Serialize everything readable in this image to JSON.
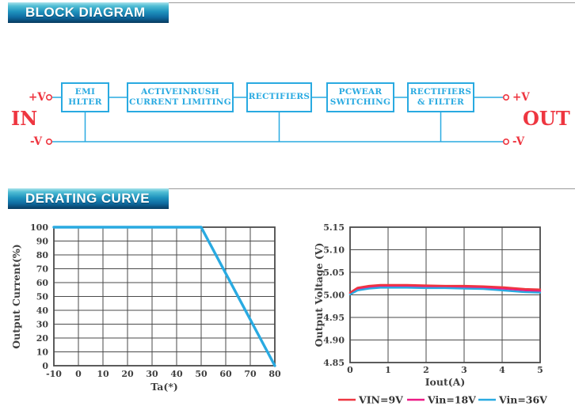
{
  "colors": {
    "accent_cyan": "#29aae1",
    "red": "#ee3640",
    "magenta": "#ec1a86",
    "grid": "#4a4a4a",
    "text_dark": "#3f3f3f",
    "banner_top": "#a7e2ea",
    "banner_bottom": "#083a5f"
  },
  "sections": {
    "block_diagram": {
      "title": "BLOCK DIAGRAM"
    },
    "derating": {
      "title": "DERATING CURVE"
    }
  },
  "diagram": {
    "in_label": "IN",
    "out_label": "OUT",
    "plus_v": "+V",
    "minus_v": "-V",
    "blocks": [
      {
        "label": "EMI\nHLTER"
      },
      {
        "label": "ACTIVEINRUSH\nCURRENT LIMITING"
      },
      {
        "label": "RECTIFIERS"
      },
      {
        "label": "PCWEAR\nSWITCHING"
      },
      {
        "label": "RECTIFIERS\n& FILTER"
      }
    ]
  },
  "chart_data": [
    {
      "type": "line",
      "title": "",
      "xlabel": "Ta(*)",
      "ylabel": "Output Current(%)",
      "xlim": [
        -10,
        80
      ],
      "ylim": [
        0,
        100
      ],
      "xticks": [
        -10,
        0,
        10,
        20,
        30,
        40,
        50,
        60,
        70,
        80
      ],
      "xtick_labels": [
        "-10",
        "0",
        "10",
        "20",
        "30",
        "40",
        "50",
        "60",
        "70",
        "80"
      ],
      "yticks": [
        0,
        10,
        20,
        30,
        40,
        50,
        60,
        70,
        80,
        90,
        100
      ],
      "ytick_labels": [
        "0",
        "10",
        "20",
        "30",
        "40",
        "50",
        "60",
        "70",
        "80",
        "90",
        "100"
      ],
      "grid": true,
      "legend": false,
      "series": [
        {
          "name": "Output Current",
          "color": "#29aae1",
          "line_width": 3.4,
          "x": [
            -10,
            50,
            80
          ],
          "y": [
            100,
            100,
            0
          ]
        }
      ]
    },
    {
      "type": "line",
      "title": "",
      "xlabel": "Iout(A)",
      "ylabel": "Output Voltage  (V)",
      "xlim": [
        0,
        5
      ],
      "ylim": [
        4.85,
        5.15
      ],
      "xticks": [
        0,
        1,
        2,
        3,
        4,
        5
      ],
      "xtick_labels": [
        "0",
        "1",
        "2",
        "3",
        "4",
        "5"
      ],
      "yticks": [
        4.85,
        4.9,
        4.95,
        5.0,
        5.05,
        5.1,
        5.15
      ],
      "ytick_labels": [
        "4.85",
        "4.90",
        "4.95",
        "5.00",
        "5.05",
        "5.10",
        "5.15"
      ],
      "grid": true,
      "legend": true,
      "legend_position": "bottom",
      "draw_order": [
        1,
        2,
        0
      ],
      "series": [
        {
          "name": "VIN=9V",
          "color": "#ee3640",
          "line_width": 2.4,
          "x": [
            0,
            0.2,
            0.5,
            0.8,
            1,
            1.5,
            2,
            2.5,
            3,
            3.5,
            4,
            4.3,
            4.6,
            5
          ],
          "y": [
            5.005,
            5.016,
            5.02,
            5.022,
            5.022,
            5.022,
            5.021,
            5.02,
            5.02,
            5.019,
            5.017,
            5.015,
            5.013,
            5.012
          ]
        },
        {
          "name": "Vin=18V",
          "color": "#ec1a86",
          "line_width": 2.4,
          "x": [
            0,
            0.2,
            0.5,
            0.8,
            1,
            1.5,
            2,
            2.5,
            3,
            3.5,
            4,
            4.3,
            4.6,
            5
          ],
          "y": [
            5.003,
            5.013,
            5.017,
            5.019,
            5.019,
            5.019,
            5.018,
            5.017,
            5.017,
            5.016,
            5.014,
            5.012,
            5.01,
            5.008
          ]
        },
        {
          "name": "Vin=36V",
          "color": "#29aae1",
          "line_width": 2.4,
          "x": [
            0,
            0.2,
            0.5,
            0.8,
            1,
            1.5,
            2,
            2.5,
            3,
            3.5,
            4,
            4.3,
            4.6,
            5
          ],
          "y": [
            5.001,
            5.01,
            5.014,
            5.016,
            5.016,
            5.016,
            5.015,
            5.015,
            5.014,
            5.013,
            5.01,
            5.008,
            5.006,
            5.005
          ]
        }
      ]
    }
  ]
}
